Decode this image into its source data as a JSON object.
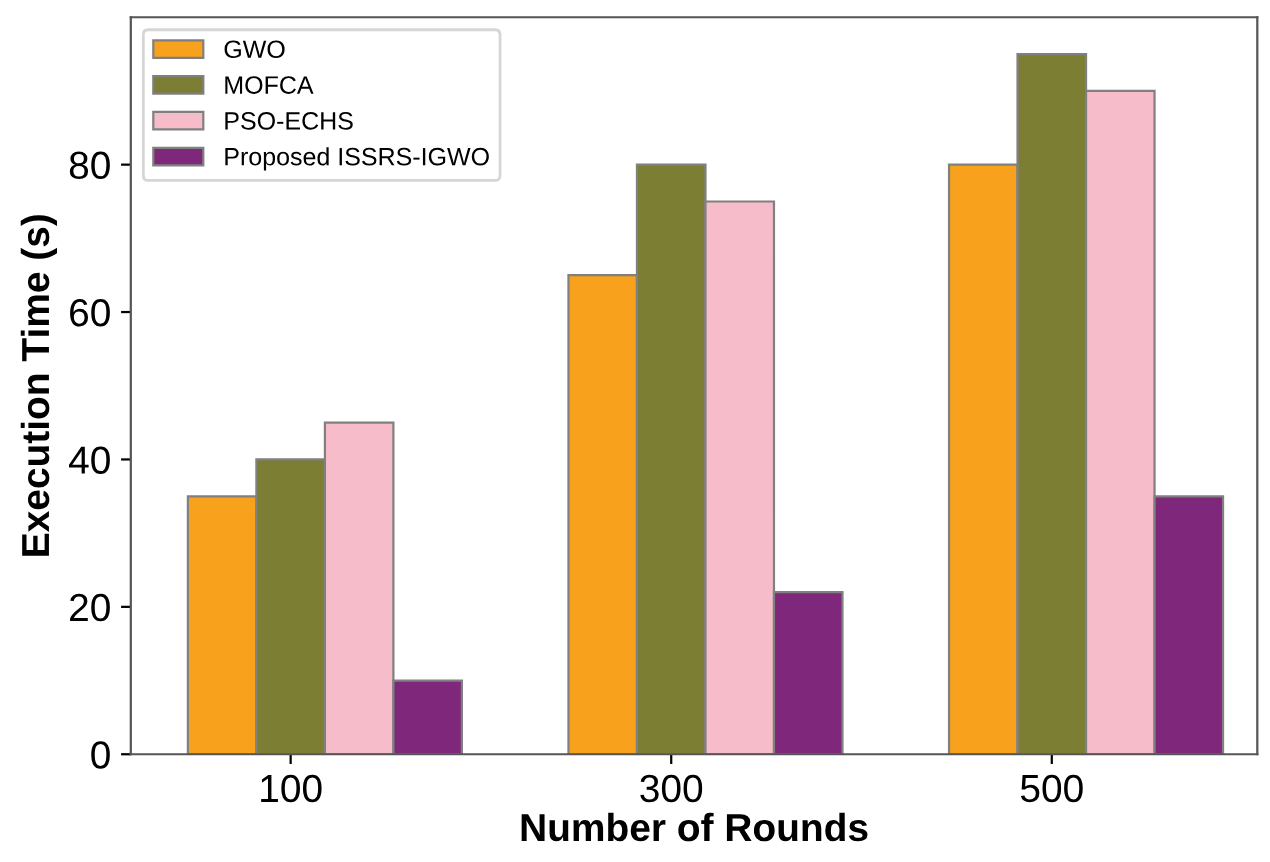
{
  "chart_data": {
    "type": "bar",
    "xlabel": "Number of Rounds",
    "ylabel": "Execution Time (s)",
    "categories": [
      "100",
      "300",
      "500"
    ],
    "series": [
      {
        "name": "GWO",
        "color": "#f7a11d",
        "values": [
          35,
          65,
          80
        ]
      },
      {
        "name": "MOFCA",
        "color": "#7b7e33",
        "values": [
          40,
          80,
          95
        ]
      },
      {
        "name": "PSO-ECHS",
        "color": "#f6bcc9",
        "values": [
          45,
          75,
          90
        ]
      },
      {
        "name": "Proposed ISSRS-IGWO",
        "color": "#7e277b",
        "values": [
          10,
          22,
          35
        ]
      }
    ],
    "ylim": [
      0,
      100
    ],
    "yticks": [
      0,
      20,
      40,
      60,
      80
    ],
    "grid": false,
    "legend": "top left"
  }
}
